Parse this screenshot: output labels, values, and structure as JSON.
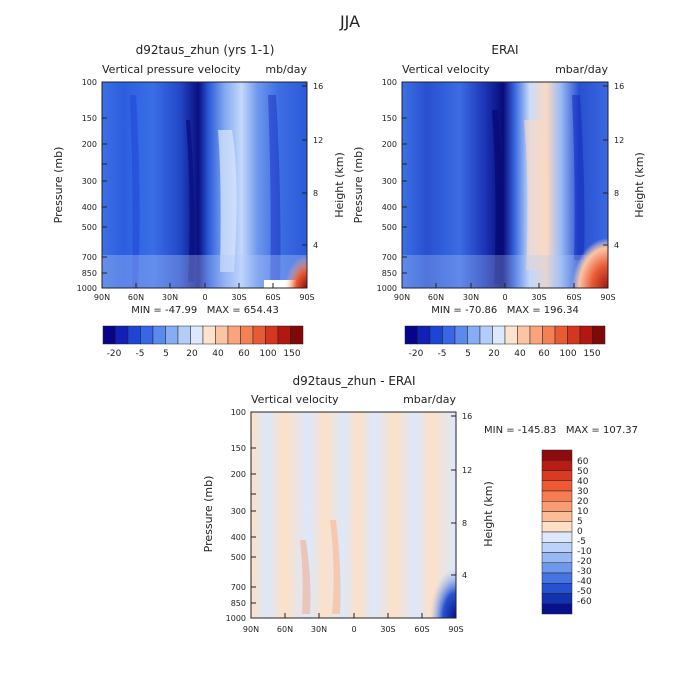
{
  "figure_title": "JJA",
  "chart_data": [
    {
      "type": "heatmap",
      "title": "d92taus_zhun (yrs 1-1)",
      "left_label": "Vertical pressure velocity",
      "units": "mb/day",
      "ylabel": "Pressure (mb)",
      "ylabel_right": "Height (km)",
      "x_ticks": [
        "90N",
        "60N",
        "30N",
        "0",
        "30S",
        "60S",
        "90S"
      ],
      "y_ticks": [
        "100",
        "150",
        "200",
        "250",
        "300",
        "400",
        "500",
        "700",
        "850",
        "1000"
      ],
      "y_ticks_labeled": [
        "100",
        "150",
        "200",
        "300",
        "400",
        "500",
        "700",
        "850",
        "1000"
      ],
      "y_right_ticks": [
        "16",
        "12",
        "8",
        "4"
      ],
      "stats": "MIN = -47.99   MAX = 654.43",
      "colorbar_orientation": "horizontal",
      "colorbar_labels": [
        "-20",
        "-5",
        "5",
        "20",
        "40",
        "60",
        "100",
        "150"
      ],
      "colorbar_colors": [
        "#08048a",
        "#1020b8",
        "#1e44d4",
        "#3766e6",
        "#5a8aee",
        "#86acf4",
        "#b4ccf8",
        "#dce8fc",
        "#fde2cc",
        "#fcc4a2",
        "#f9a47a",
        "#f28254",
        "#e85a34",
        "#d43620",
        "#b01810",
        "#800808"
      ]
    },
    {
      "type": "heatmap",
      "title": "ERAI",
      "left_label": "Vertical velocity",
      "units": "mbar/day",
      "ylabel": "Pressure (mb)",
      "ylabel_right": "Height (km)",
      "x_ticks": [
        "90N",
        "60N",
        "30N",
        "0",
        "30S",
        "60S",
        "90S"
      ],
      "y_ticks": [
        "100",
        "150",
        "200",
        "250",
        "300",
        "400",
        "500",
        "700",
        "850",
        "1000"
      ],
      "y_ticks_labeled": [
        "100",
        "150",
        "200",
        "300",
        "400",
        "500",
        "700",
        "850",
        "1000"
      ],
      "y_right_ticks": [
        "16",
        "12",
        "8",
        "4"
      ],
      "stats": "MIN = -70.86   MAX = 196.34",
      "colorbar_orientation": "horizontal",
      "colorbar_labels": [
        "-20",
        "-5",
        "5",
        "20",
        "40",
        "60",
        "100",
        "150"
      ],
      "colorbar_colors": [
        "#08048a",
        "#1020b8",
        "#1e44d4",
        "#3766e6",
        "#5a8aee",
        "#86acf4",
        "#b4ccf8",
        "#dce8fc",
        "#fde2cc",
        "#fcc4a2",
        "#f9a47a",
        "#f28254",
        "#e85a34",
        "#d43620",
        "#b01810",
        "#800808"
      ]
    },
    {
      "type": "heatmap",
      "title": "d92taus_zhun - ERAI",
      "left_label": "Vertical velocity",
      "units": "mbar/day",
      "ylabel": "Pressure (mb)",
      "ylabel_right": "Height (km)",
      "x_ticks": [
        "90N",
        "60N",
        "30N",
        "0",
        "30S",
        "60S",
        "90S"
      ],
      "y_ticks": [
        "100",
        "150",
        "200",
        "250",
        "300",
        "400",
        "500",
        "700",
        "850",
        "1000"
      ],
      "y_ticks_labeled": [
        "100",
        "150",
        "200",
        "300",
        "400",
        "500",
        "700",
        "850",
        "1000"
      ],
      "y_right_ticks": [
        "16",
        "12",
        "8",
        "4"
      ],
      "stats": "MIN = -145.83   MAX = 107.37",
      "colorbar_orientation": "vertical",
      "colorbar_labels": [
        "60",
        "50",
        "40",
        "30",
        "20",
        "10",
        "5",
        "0",
        "-5",
        "-10",
        "-20",
        "-30",
        "-40",
        "-50",
        "-60"
      ],
      "colorbar_colors": [
        "#8a0c0c",
        "#b81c14",
        "#d83a22",
        "#ee5a36",
        "#f67c52",
        "#f99c74",
        "#fbbc98",
        "#fde0c6",
        "#dce8fc",
        "#bcd2f8",
        "#98b8f4",
        "#6e98ee",
        "#4674e2",
        "#2652d2",
        "#1232b2",
        "#08108a"
      ]
    }
  ]
}
